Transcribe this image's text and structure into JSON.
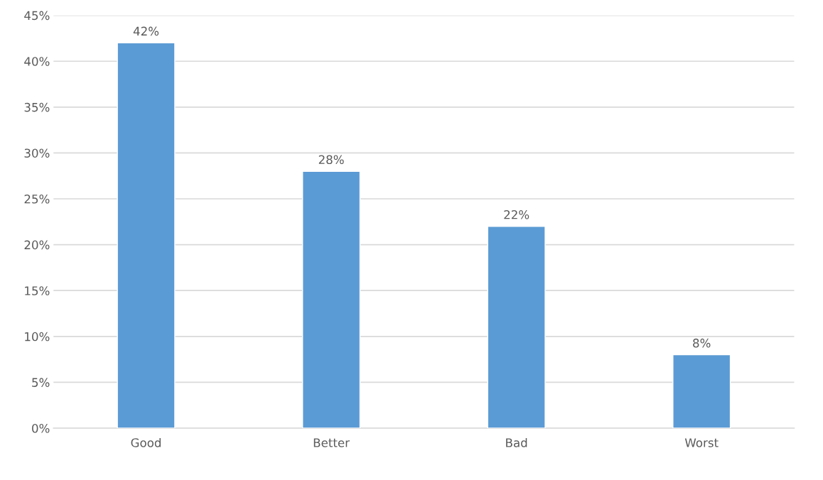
{
  "chart_data": {
    "type": "bar",
    "categories": [
      "Good",
      "Better",
      "Bad",
      "Worst"
    ],
    "values": [
      42,
      28,
      22,
      8
    ],
    "value_labels": [
      "42%",
      "28%",
      "22%",
      "8%"
    ],
    "color": "#5b9bd5",
    "ylim": [
      0,
      45
    ],
    "yticks": [
      {
        "value": 0,
        "label": "0%"
      },
      {
        "value": 5,
        "label": "5%"
      },
      {
        "value": 10,
        "label": "10%"
      },
      {
        "value": 15,
        "label": "15%"
      },
      {
        "value": 20,
        "label": "20%"
      },
      {
        "value": 25,
        "label": "25%"
      },
      {
        "value": 30,
        "label": "30%"
      },
      {
        "value": 35,
        "label": "35%"
      },
      {
        "value": 40,
        "label": "40%"
      },
      {
        "value": 45,
        "label": "45%"
      }
    ],
    "grid": "y",
    "legend": false
  }
}
